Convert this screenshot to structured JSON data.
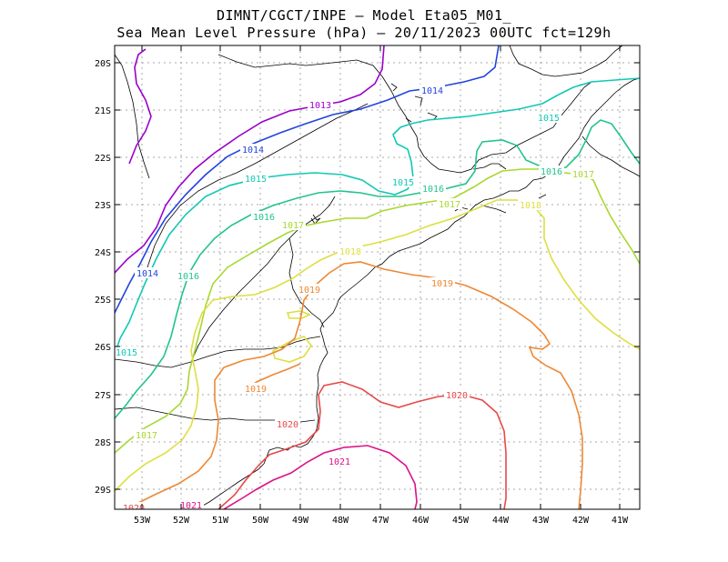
{
  "title": {
    "line1": "DIMNT/CGCT/INPE —  Model Eta05_M01_",
    "line2": "Sea Mean Level Pressure (hPa) — 20/11/2023 00UTC fct=129h"
  },
  "axes": {
    "lat_labels": [
      "20S",
      "21S",
      "22S",
      "23S",
      "24S",
      "25S",
      "26S",
      "27S",
      "28S",
      "29S"
    ],
    "lon_labels": [
      "53W",
      "52W",
      "51W",
      "50W",
      "49W",
      "48W",
      "47W",
      "46W",
      "45W",
      "44W",
      "43W",
      "42W",
      "41W"
    ]
  },
  "contours": [
    {
      "level": "1013",
      "color": "#9900cc"
    },
    {
      "level": "1014",
      "color": "#2244dd"
    },
    {
      "level": "1015",
      "color": "#11c8b4"
    },
    {
      "level": "1016",
      "color": "#22c48a"
    },
    {
      "level": "1017",
      "color": "#a8d830"
    },
    {
      "level": "1018",
      "color": "#dede40"
    },
    {
      "level": "1019",
      "color": "#ee8833"
    },
    {
      "level": "1020",
      "color": "#e84848"
    },
    {
      "level": "1021",
      "color": "#dd1188"
    }
  ],
  "contour_labels": [
    {
      "text": "1013",
      "color": "#9900cc"
    },
    {
      "text": "1014",
      "color": "#2244dd"
    },
    {
      "text": "1014",
      "color": "#2244dd"
    },
    {
      "text": "1014",
      "color": "#2244dd"
    },
    {
      "text": "1015",
      "color": "#11c8b4"
    },
    {
      "text": "1015",
      "color": "#11c8b4"
    },
    {
      "text": "1015",
      "color": "#11c8b4"
    },
    {
      "text": "1015",
      "color": "#11c8b4"
    },
    {
      "text": "1016",
      "color": "#22c48a"
    },
    {
      "text": "1016",
      "color": "#22c48a"
    },
    {
      "text": "1016",
      "color": "#22c48a"
    },
    {
      "text": "1016",
      "color": "#22c48a"
    },
    {
      "text": "1017",
      "color": "#a8d830"
    },
    {
      "text": "1017",
      "color": "#a8d830"
    },
    {
      "text": "1017",
      "color": "#a8d830"
    },
    {
      "text": "1017",
      "color": "#a8d830"
    },
    {
      "text": "1018",
      "color": "#dede40"
    },
    {
      "text": "1018",
      "color": "#dede40"
    },
    {
      "text": "1019",
      "color": "#ee8833"
    },
    {
      "text": "1019",
      "color": "#ee8833"
    },
    {
      "text": "1019",
      "color": "#ee8833"
    },
    {
      "text": "1020",
      "color": "#e84848"
    },
    {
      "text": "1020",
      "color": "#e84848"
    },
    {
      "text": "1020",
      "color": "#e84848"
    },
    {
      "text": "1021",
      "color": "#dd1188"
    },
    {
      "text": "1021",
      "color": "#dd1188"
    }
  ]
}
